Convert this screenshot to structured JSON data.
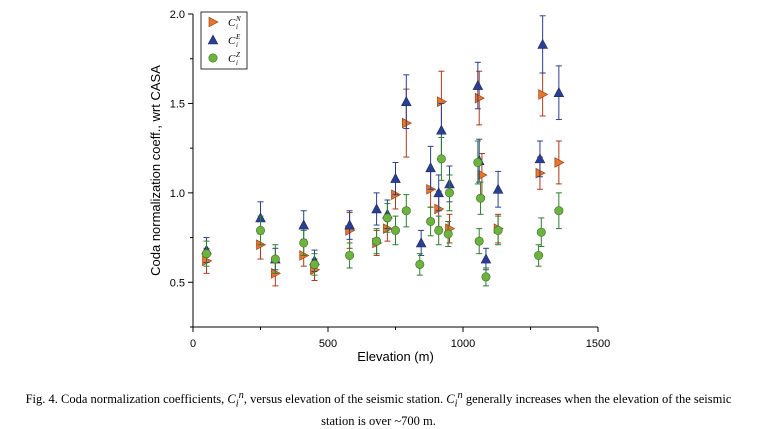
{
  "chart_data": {
    "type": "scatter",
    "title": "",
    "xlabel": "Elevation (m)",
    "ylabel": "Coda normalization coeff., wrt CASA",
    "xlim": [
      0,
      1500
    ],
    "ylim": [
      0.25,
      2.0
    ],
    "x_ticks": [
      0,
      500,
      1000,
      1500
    ],
    "y_ticks": [
      0.5,
      1.0,
      1.5,
      2.0
    ],
    "legend_position": "top-left",
    "series": [
      {
        "name": "C_i^N",
        "legend_base": "C",
        "legend_sub": "i",
        "legend_sup": "N",
        "marker": "triangle-right",
        "color": "#e8752a",
        "err_color": "#a83a1a",
        "points": [
          {
            "x": 50,
            "y": 0.62,
            "err": 0.07
          },
          {
            "x": 250,
            "y": 0.71,
            "err": 0.08
          },
          {
            "x": 305,
            "y": 0.55,
            "err": 0.07
          },
          {
            "x": 410,
            "y": 0.65,
            "err": 0.06
          },
          {
            "x": 450,
            "y": 0.57,
            "err": 0.06
          },
          {
            "x": 580,
            "y": 0.79,
            "err": 0.1
          },
          {
            "x": 680,
            "y": 0.72,
            "err": 0.07
          },
          {
            "x": 720,
            "y": 0.8,
            "err": 0.07
          },
          {
            "x": 750,
            "y": 0.99,
            "err": 0.08
          },
          {
            "x": 790,
            "y": 1.39,
            "err": 0.19
          },
          {
            "x": 880,
            "y": 1.02,
            "err": 0.1
          },
          {
            "x": 910,
            "y": 0.91,
            "err": 0.1
          },
          {
            "x": 920,
            "y": 1.51,
            "err": 0.17
          },
          {
            "x": 950,
            "y": 0.8,
            "err": 0.08
          },
          {
            "x": 1060,
            "y": 1.53,
            "err": 0.15
          },
          {
            "x": 1070,
            "y": 1.1,
            "err": 0.12
          },
          {
            "x": 1130,
            "y": 0.8,
            "err": 0.08
          },
          {
            "x": 1285,
            "y": 1.11,
            "err": 0.09
          },
          {
            "x": 1295,
            "y": 1.55,
            "err": 0.12
          },
          {
            "x": 1355,
            "y": 1.17,
            "err": 0.12
          }
        ]
      },
      {
        "name": "C_i^E",
        "legend_base": "C",
        "legend_sub": "i",
        "legend_sup": "E",
        "marker": "triangle-up",
        "color": "#2b3f91",
        "err_color": "#2b3f91",
        "points": [
          {
            "x": 50,
            "y": 0.68,
            "err": 0.07
          },
          {
            "x": 250,
            "y": 0.86,
            "err": 0.09
          },
          {
            "x": 305,
            "y": 0.63,
            "err": 0.06
          },
          {
            "x": 410,
            "y": 0.82,
            "err": 0.08
          },
          {
            "x": 450,
            "y": 0.62,
            "err": 0.06
          },
          {
            "x": 580,
            "y": 0.82,
            "err": 0.08
          },
          {
            "x": 680,
            "y": 0.91,
            "err": 0.09
          },
          {
            "x": 720,
            "y": 0.88,
            "err": 0.08
          },
          {
            "x": 750,
            "y": 1.08,
            "err": 0.09
          },
          {
            "x": 790,
            "y": 1.51,
            "err": 0.15
          },
          {
            "x": 845,
            "y": 0.72,
            "err": 0.07
          },
          {
            "x": 880,
            "y": 1.14,
            "err": 0.12
          },
          {
            "x": 910,
            "y": 1.0,
            "err": 0.1
          },
          {
            "x": 920,
            "y": 1.35,
            "err": 0.15
          },
          {
            "x": 950,
            "y": 1.05,
            "err": 0.1
          },
          {
            "x": 1055,
            "y": 1.6,
            "err": 0.13
          },
          {
            "x": 1060,
            "y": 1.18,
            "err": 0.12
          },
          {
            "x": 1085,
            "y": 0.63,
            "err": 0.06
          },
          {
            "x": 1130,
            "y": 1.02,
            "err": 0.1
          },
          {
            "x": 1285,
            "y": 1.19,
            "err": 0.1
          },
          {
            "x": 1295,
            "y": 1.83,
            "err": 0.16
          },
          {
            "x": 1355,
            "y": 1.56,
            "err": 0.15
          }
        ]
      },
      {
        "name": "C_i^Z",
        "legend_base": "C",
        "legend_sub": "i",
        "legend_sup": "Z",
        "marker": "circle",
        "color": "#6cb33f",
        "err_color": "#2f7d2f",
        "points": [
          {
            "x": 50,
            "y": 0.66,
            "err": 0.07
          },
          {
            "x": 250,
            "y": 0.79,
            "err": 0.08
          },
          {
            "x": 305,
            "y": 0.63,
            "err": 0.08
          },
          {
            "x": 410,
            "y": 0.72,
            "err": 0.07
          },
          {
            "x": 450,
            "y": 0.6,
            "err": 0.06
          },
          {
            "x": 580,
            "y": 0.65,
            "err": 0.07
          },
          {
            "x": 680,
            "y": 0.73,
            "err": 0.07
          },
          {
            "x": 720,
            "y": 0.86,
            "err": 0.08
          },
          {
            "x": 750,
            "y": 0.79,
            "err": 0.08
          },
          {
            "x": 790,
            "y": 0.9,
            "err": 0.09
          },
          {
            "x": 840,
            "y": 0.6,
            "err": 0.06
          },
          {
            "x": 880,
            "y": 0.84,
            "err": 0.08
          },
          {
            "x": 910,
            "y": 0.79,
            "err": 0.08
          },
          {
            "x": 920,
            "y": 1.19,
            "err": 0.12
          },
          {
            "x": 945,
            "y": 0.77,
            "err": 0.07
          },
          {
            "x": 950,
            "y": 1.0,
            "err": 0.1
          },
          {
            "x": 1055,
            "y": 1.17,
            "err": 0.12
          },
          {
            "x": 1060,
            "y": 0.73,
            "err": 0.07
          },
          {
            "x": 1065,
            "y": 0.97,
            "err": 0.09
          },
          {
            "x": 1085,
            "y": 0.53,
            "err": 0.05
          },
          {
            "x": 1130,
            "y": 0.79,
            "err": 0.08
          },
          {
            "x": 1280,
            "y": 0.65,
            "err": 0.06
          },
          {
            "x": 1290,
            "y": 0.78,
            "err": 0.08
          },
          {
            "x": 1355,
            "y": 0.9,
            "err": 0.1
          }
        ]
      }
    ]
  },
  "caption": {
    "prefix": "Fig. 4. Coda normalization coefficients, ",
    "symbol_base": "C",
    "symbol_sub": "i",
    "symbol_sup": "n",
    "middle": ", versus elevation of the seismic station. ",
    "rest": " generally increases when the elevation of the seismic station is over ~700 m."
  }
}
